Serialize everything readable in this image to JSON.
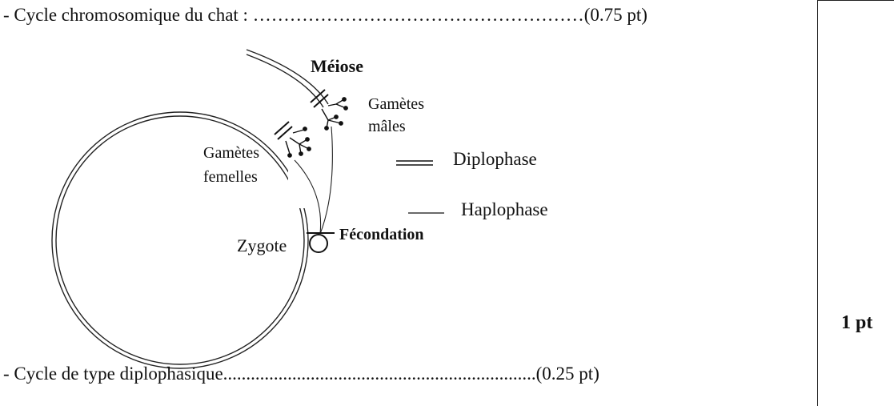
{
  "question": {
    "title_line": "- Cycle chromosomique du chat : ………………………………………………(0.75 pt)",
    "answer_line": "- Cycle de type diplophasique....................................................................(0.25 pt)"
  },
  "score": {
    "label": "1 pt"
  },
  "diagram": {
    "meiosis_label": "Méiose",
    "male_gametes_line1": "Gamètes",
    "male_gametes_line2": "mâles",
    "female_gametes_line1": "Gamètes",
    "female_gametes_line2": "femelles",
    "fertilization_label": "Fécondation",
    "zygote_label": "Zygote",
    "legend": [
      {
        "label": "Diplophase",
        "style": "double-line"
      },
      {
        "label": "Haplophase",
        "style": "single-line"
      }
    ]
  }
}
